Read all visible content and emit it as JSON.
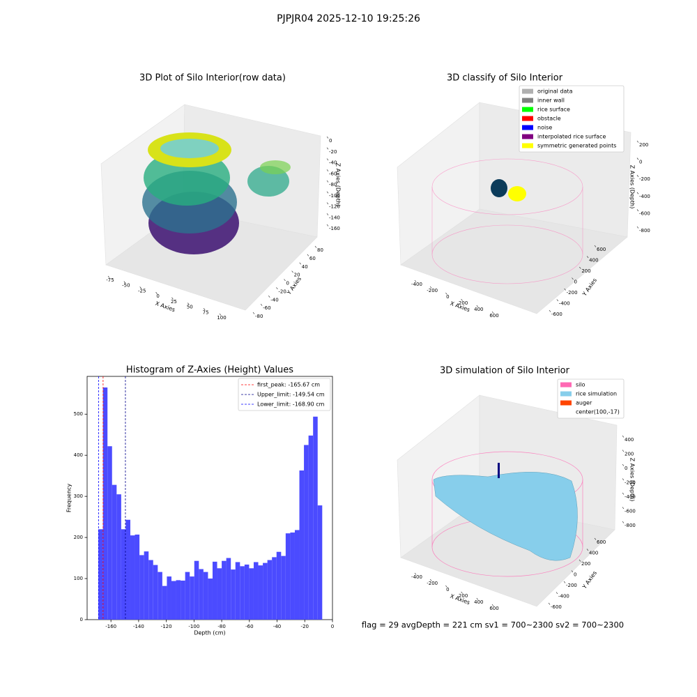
{
  "suptitle": "PJPJR04 2025-12-10 19:25:26",
  "footer": "flag = 29  avgDepth = 221 cm  sv1 = 700~2300  sv2 = 700~2300",
  "chart_data": [
    {
      "type": "scatter3d",
      "title": "3D Plot of Silo Interior(row data)",
      "xlabel": "X Axies",
      "ylabel": "Y Axies",
      "zlabel": "Z Axies (Depth)",
      "xticks": [
        -75,
        -50,
        -25,
        0,
        25,
        50,
        75,
        100
      ],
      "yticks": [
        -80,
        -60,
        -40,
        -20,
        0,
        20,
        40,
        60,
        80
      ],
      "zticks": [
        0,
        -20,
        -40,
        -60,
        -80,
        -100,
        -120,
        -140,
        -160
      ]
    },
    {
      "type": "scatter3d",
      "title": "3D classify of Silo Interior",
      "xlabel": "X Axies",
      "ylabel": "Y Axies",
      "zlabel": "Z Axies (Depth)",
      "xticks": [
        -400,
        -200,
        0,
        200,
        400,
        600
      ],
      "yticks": [
        -600,
        -400,
        -200,
        0,
        200,
        400,
        600
      ],
      "zticks": [
        200,
        0,
        -200,
        -400,
        -600,
        -800
      ],
      "legend": [
        {
          "name": "original data",
          "color": "#b0b0b0"
        },
        {
          "name": "inner wall",
          "color": "#808080"
        },
        {
          "name": "rice surface",
          "color": "#00ff00"
        },
        {
          "name": "obstacle",
          "color": "#ff0000"
        },
        {
          "name": "noise",
          "color": "#0000ff"
        },
        {
          "name": "interpolated rice surface",
          "color": "#800080"
        },
        {
          "name": "symmetric generated points",
          "color": "#ffff00"
        }
      ]
    },
    {
      "type": "histogram",
      "title": "Histogram of Z-Axies (Height) Values",
      "xlabel": "Depth (cm)",
      "ylabel": "Frequency",
      "color": "#4b4bff",
      "bins": [
        -169.1,
        -165.8,
        -162.5,
        -159.2,
        -155.9,
        -152.6,
        -149.3,
        -146.0,
        -142.7,
        -139.4,
        -136.1,
        -132.8,
        -129.5,
        -126.2,
        -122.9,
        -119.6,
        -116.3,
        -113.0,
        -109.7,
        -106.4,
        -103.1,
        -99.8,
        -96.5,
        -93.2,
        -89.9,
        -86.6,
        -83.3,
        -80.0,
        -76.7,
        -73.4,
        -70.1,
        -66.8,
        -63.5,
        -60.2,
        -56.9,
        -53.6,
        -50.3,
        -47.0,
        -43.7,
        -40.4,
        -37.1,
        -33.8,
        -30.5,
        -27.2,
        -23.9,
        -20.6,
        -17.3,
        -14.0,
        -10.7,
        -7.4
      ],
      "values": [
        220,
        565,
        422,
        328,
        305,
        220,
        243,
        205,
        207,
        157,
        166,
        145,
        133,
        116,
        82,
        105,
        94,
        96,
        95,
        116,
        105,
        143,
        123,
        116,
        100,
        141,
        125,
        143,
        150,
        122,
        140,
        130,
        134,
        125,
        140,
        132,
        138,
        145,
        152,
        165,
        155,
        210,
        212,
        218,
        363,
        425,
        448,
        494,
        278
      ],
      "xlim": [
        -177.2,
        0
      ],
      "ylim": [
        0,
        592
      ],
      "xticks": [
        -160,
        -140,
        -120,
        -100,
        -80,
        -60,
        -40,
        -20,
        0
      ],
      "yticks": [
        0,
        100,
        200,
        300,
        400,
        500
      ],
      "vlines": [
        {
          "name": "first_peak: -165.67 cm",
          "value": -165.67,
          "color": "#ff0000"
        },
        {
          "name": "Upper_limit: -149.54 cm",
          "value": -149.54,
          "color": "#00008b"
        },
        {
          "name": "Lower_limit: -168.90 cm",
          "value": -168.9,
          "color": "#0000ff"
        }
      ]
    },
    {
      "type": "surface3d",
      "title": "3D simulation of Silo Interior",
      "xlabel": "X Axies",
      "ylabel": "Y Axies",
      "zlabel": "Z Axies (Depth)",
      "xticks": [
        -400,
        -200,
        0,
        200,
        400,
        600
      ],
      "yticks": [
        -600,
        -400,
        -200,
        0,
        200,
        400,
        600
      ],
      "zticks": [
        400,
        200,
        0,
        -200,
        -400,
        -600,
        -800
      ],
      "legend": [
        {
          "name": "silo",
          "color": "#ff69b4"
        },
        {
          "name": "rice simulation",
          "color": "#87ceeb"
        },
        {
          "name": "auger",
          "color": "#ff4500"
        },
        {
          "name": "center(100,-17)",
          "color": null
        }
      ]
    }
  ]
}
